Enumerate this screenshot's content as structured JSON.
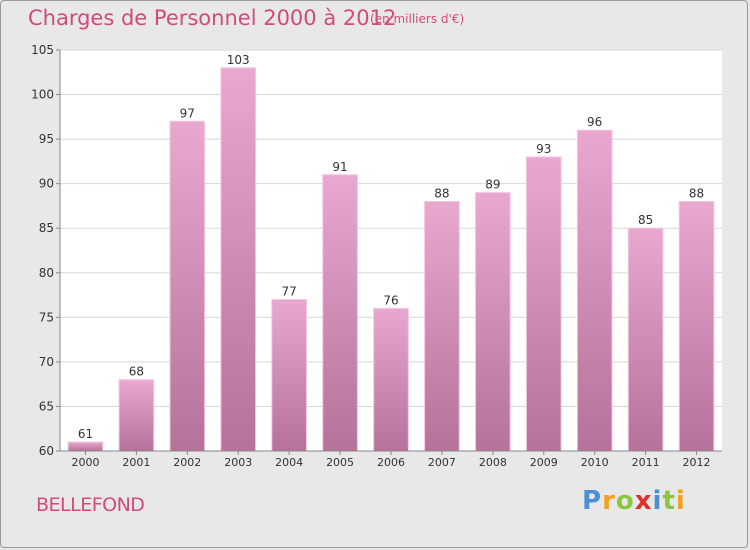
{
  "title": "Charges de Personnel 2000 à 2012",
  "subtitle": "(en milliers d'€)",
  "commune": "BELLEFOND",
  "logo": {
    "letters": [
      "P",
      "r",
      "o",
      "x",
      "i",
      "t",
      "i"
    ],
    "colors": [
      "#4a8fd8",
      "#f2a020",
      "#8cc63f",
      "#e0302a",
      "#4a8fd8",
      "#8cc63f",
      "#f2a020"
    ]
  },
  "colors": {
    "title": "#d34a7a",
    "bar_top": "#e8a8cf",
    "bar_bottom": "#b5729a",
    "background": "#e8e8e8",
    "plot_background": "#ffffff"
  },
  "chart_data": {
    "type": "bar",
    "categories": [
      "2000",
      "2001",
      "2002",
      "2003",
      "2004",
      "2005",
      "2006",
      "2007",
      "2008",
      "2009",
      "2010",
      "2011",
      "2012"
    ],
    "values": [
      61,
      68,
      97,
      103,
      77,
      91,
      76,
      88,
      89,
      93,
      96,
      85,
      88
    ],
    "ylim": [
      60,
      105
    ],
    "yticks": [
      60,
      65,
      70,
      75,
      80,
      85,
      90,
      95,
      100,
      105
    ],
    "grid": "horizontal"
  }
}
